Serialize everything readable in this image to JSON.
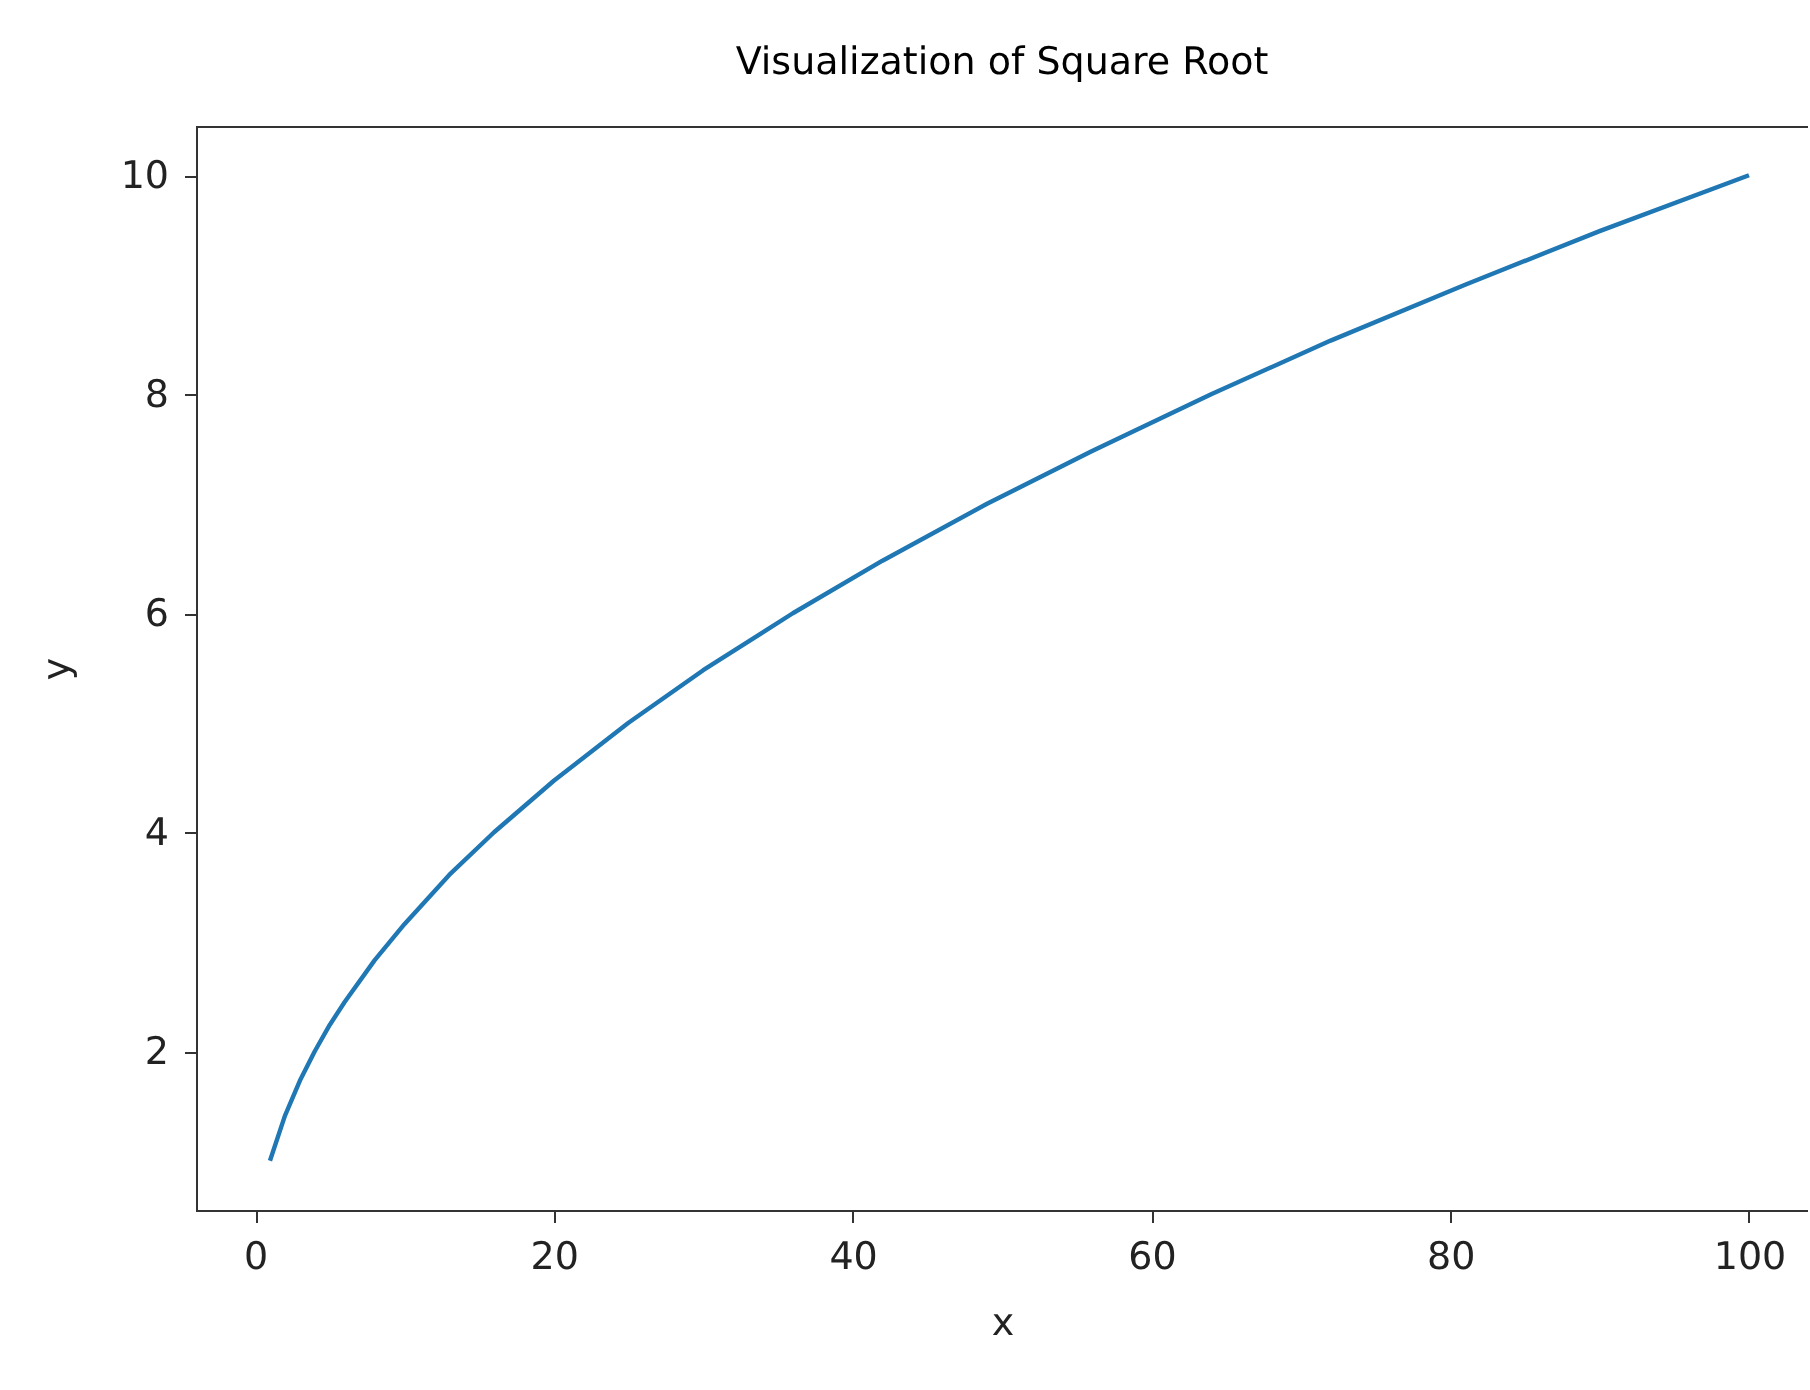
{
  "chart_data": {
    "type": "line",
    "title": "Visualization of Square Root",
    "xlabel": "x",
    "ylabel": "y",
    "x": [
      1,
      2,
      3,
      4,
      5,
      6,
      8,
      10,
      13,
      16,
      20,
      25,
      30,
      36,
      42,
      49,
      56,
      64,
      72,
      81,
      90,
      100
    ],
    "series": [
      {
        "color": "#1f77b4",
        "values": [
          1,
          1.41,
          1.73,
          2,
          2.24,
          2.45,
          2.83,
          3.16,
          3.61,
          4,
          4.47,
          5,
          5.48,
          6,
          6.48,
          7,
          7.48,
          8,
          8.49,
          9,
          9.49,
          10
        ]
      }
    ],
    "xlim": [
      -3.95,
      103.95
    ],
    "ylim": [
      0.55,
      10.45
    ],
    "xticks": [
      0,
      20,
      40,
      60,
      80,
      100
    ],
    "yticks": [
      2,
      4,
      6,
      8,
      10
    ],
    "grid": false
  }
}
